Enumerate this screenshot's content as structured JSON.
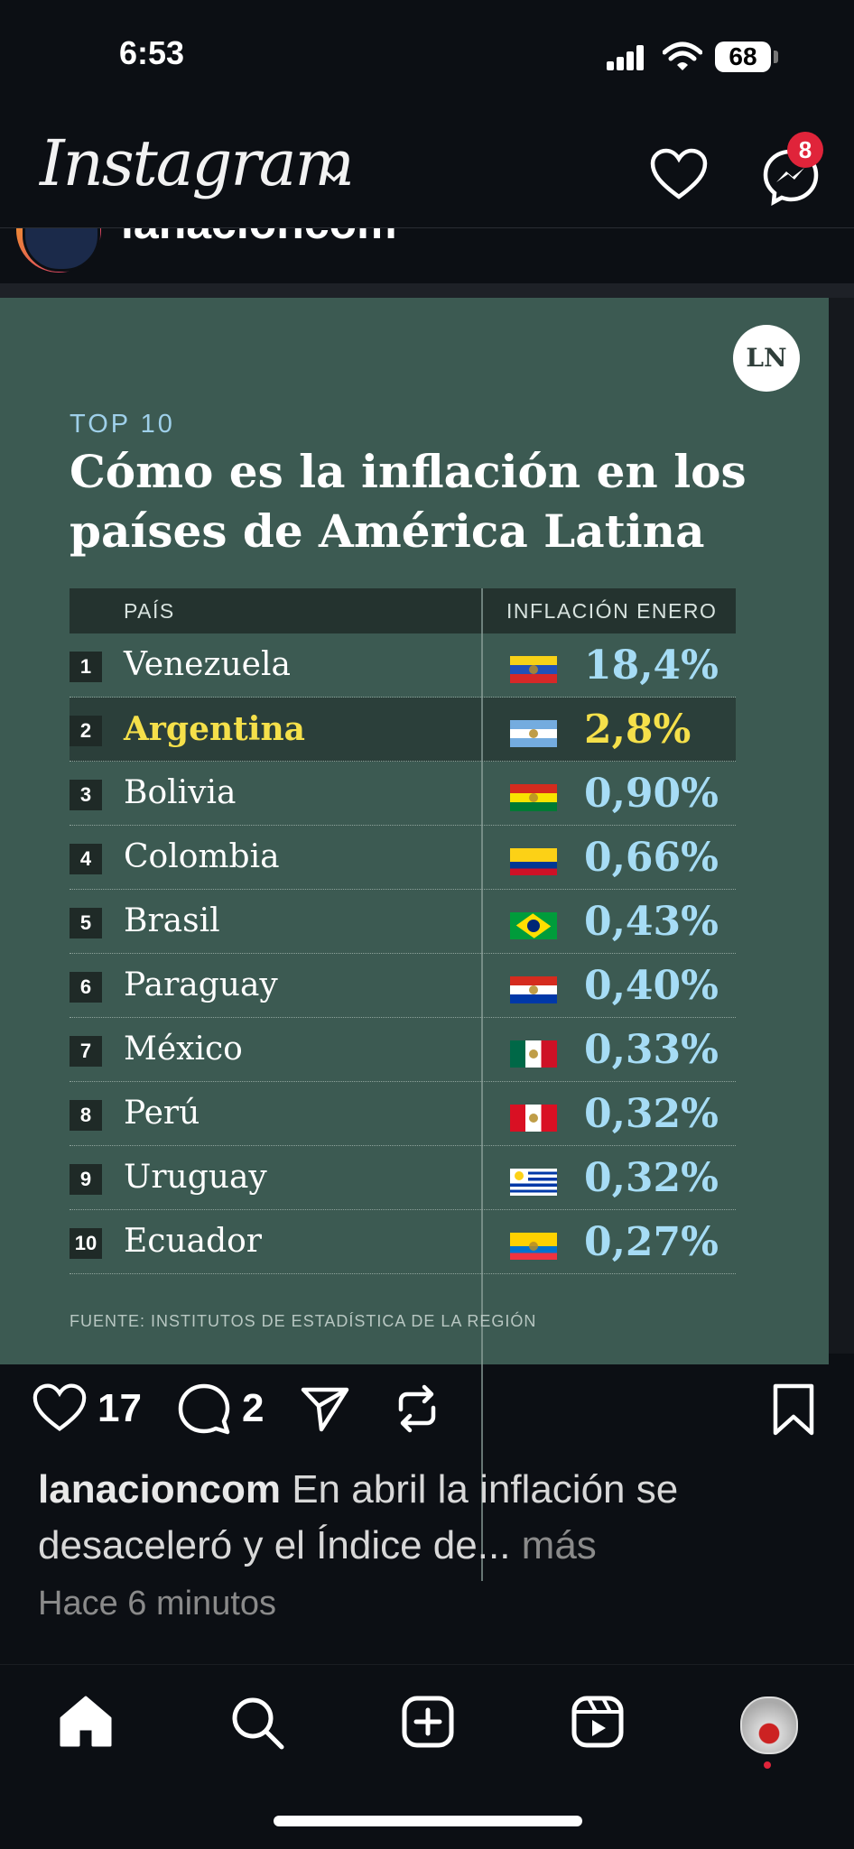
{
  "status_bar": {
    "time": "6:53",
    "battery": "68"
  },
  "header": {
    "app_name": "Instagram",
    "messenger_badge": "8",
    "account_name": "lanacioncom"
  },
  "card": {
    "logo": "LN",
    "kicker": "TOP 10",
    "title": "Cómo es la inflación en los países de América Latina",
    "col_country": "PAÍS",
    "col_value": "INFLACIÓN ENERO",
    "source": "FUENTE: INSTITUTOS DE ESTADÍSTICA DE LA REGIÓN",
    "highlight_color": "#f5e04a",
    "value_color": "#a6dcf5",
    "rows": [
      {
        "rank": "1",
        "country": "Venezuela",
        "value": "18,4%",
        "flag": "venezuela"
      },
      {
        "rank": "2",
        "country": "Argentina",
        "value": "2,8%",
        "flag": "argentina"
      },
      {
        "rank": "3",
        "country": "Bolivia",
        "value": "0,90%",
        "flag": "bolivia"
      },
      {
        "rank": "4",
        "country": "Colombia",
        "value": "0,66%",
        "flag": "colombia"
      },
      {
        "rank": "5",
        "country": "Brasil",
        "value": "0,43%",
        "flag": "brazil"
      },
      {
        "rank": "6",
        "country": "Paraguay",
        "value": "0,40%",
        "flag": "paraguay"
      },
      {
        "rank": "7",
        "country": "México",
        "value": "0,33%",
        "flag": "mexico"
      },
      {
        "rank": "8",
        "country": "Perú",
        "value": "0,32%",
        "flag": "peru"
      },
      {
        "rank": "9",
        "country": "Uruguay",
        "value": "0,32%",
        "flag": "uruguay"
      },
      {
        "rank": "10",
        "country": "Ecuador",
        "value": "0,27%",
        "flag": "ecuador"
      }
    ]
  },
  "post": {
    "likes": "17",
    "comments": "2",
    "username": "lanacioncom",
    "caption": "En abril la inflación se desaceleró y el Índice de...",
    "more": "más",
    "time_ago": "Hace 6 minutos"
  }
}
